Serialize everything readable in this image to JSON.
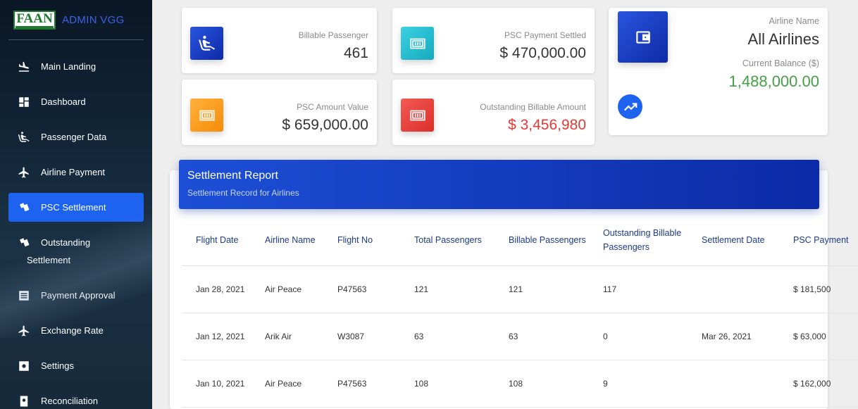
{
  "brand": {
    "logo_text": "FAAN",
    "name": "ADMIN VGG"
  },
  "sidebar": {
    "items": [
      {
        "label": "Main Landing",
        "icon": "plane-landing-icon"
      },
      {
        "label": "Dashboard",
        "icon": "dashboard-icon"
      },
      {
        "label": "Passenger Data",
        "icon": "passenger-seat-icon"
      },
      {
        "label": "Airline Payment",
        "icon": "airplane-icon"
      },
      {
        "label": "PSC Settlement",
        "icon": "tickets-icon",
        "active": true
      },
      {
        "label": "Outstanding",
        "label2": "Settlement",
        "icon": "tickets-icon"
      },
      {
        "label": "Payment Approval",
        "icon": "list-icon"
      },
      {
        "label": "Exchange Rate",
        "icon": "airplane-icon"
      },
      {
        "label": "Settings",
        "icon": "gear-icon"
      },
      {
        "label": "Reconciliation",
        "icon": "reconcile-icon"
      }
    ]
  },
  "stats": {
    "billable_passenger": {
      "label": "Billable Passenger",
      "value": "461"
    },
    "psc_payment_settled": {
      "label": "PSC Payment Settled",
      "value": "$ 470,000.00"
    },
    "psc_amount_value": {
      "label": "PSC Amount Value",
      "value": "$ 659,000.00"
    },
    "outstanding_billable": {
      "label": "Outstanding Billable Amount",
      "value": "$ 3,456,980"
    }
  },
  "airline": {
    "name_label": "Airline Name",
    "name_value": "All Airlines",
    "balance_label": "Current Balance ($)",
    "balance_value": "1,488,000.00"
  },
  "colors": {
    "accent_blue": "#1e63f0",
    "teal": "#26c6da",
    "orange": "#ff9800",
    "red": "#e53935",
    "green": "#43a047"
  },
  "report": {
    "title": "Settlement Report",
    "subtitle": "Settlement Record for Airlines",
    "columns": [
      "Flight Date",
      "Airline Name",
      "Flight No",
      "Total Passengers",
      "Billable Passengers",
      "Outstanding Billable Passengers",
      "Settlement Date",
      "PSC Payment"
    ],
    "rows": [
      {
        "flight_date": "Jan 28, 2021",
        "airline": "Air Peace",
        "flight_no": "P47563",
        "total": "121",
        "billable": "121",
        "outstanding": "117",
        "settlement_date": "",
        "psc_payment": "$ 181,500"
      },
      {
        "flight_date": "Jan 12, 2021",
        "airline": "Arik Air",
        "flight_no": "W3087",
        "total": "63",
        "billable": "63",
        "outstanding": "0",
        "settlement_date": "Mar 26, 2021",
        "psc_payment": "$ 63,000"
      },
      {
        "flight_date": "Jan 10, 2021",
        "airline": "Air Peace",
        "flight_no": "P47563",
        "total": "108",
        "billable": "108",
        "outstanding": "9",
        "settlement_date": "",
        "psc_payment": "$ 162,000"
      }
    ]
  }
}
